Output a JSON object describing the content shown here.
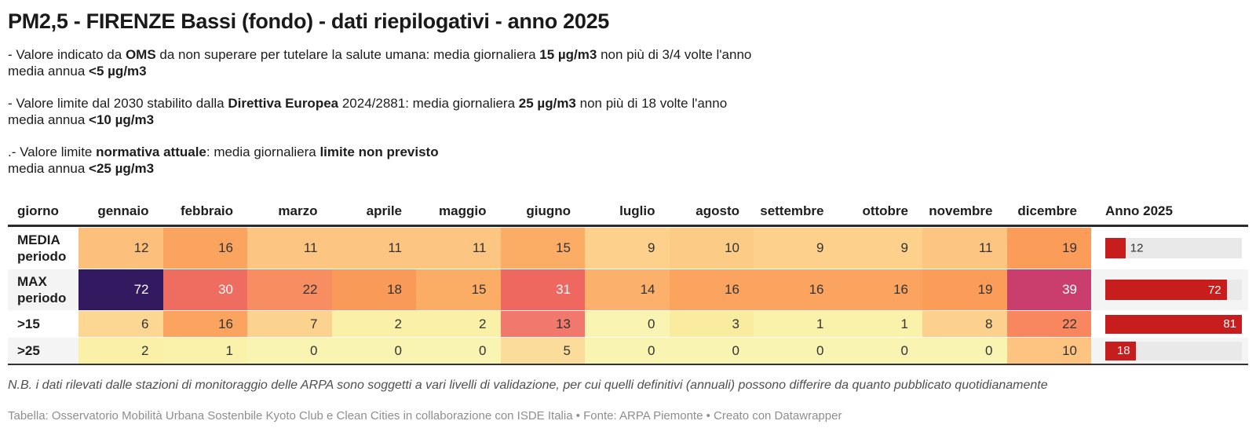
{
  "title": "PM2,5 - FIRENZE Bassi (fondo) - dati riepilogativi - anno 2025",
  "notes": [
    [
      [
        {
          "t": "- Valore indicato da "
        },
        {
          "t": "OMS",
          "b": true
        },
        {
          "t": " da non superare per tutelare la salute umana: media giornaliera "
        },
        {
          "t": "15 µg/m3",
          "b": true
        },
        {
          "t": " non più di 3/4 volte l'anno"
        }
      ],
      [
        {
          "t": "media annua "
        },
        {
          "t": "<5 µg/m3",
          "b": true
        }
      ]
    ],
    [
      [
        {
          "t": "- Valore limite dal 2030 stabilito dalla "
        },
        {
          "t": "Direttiva Europea",
          "b": true
        },
        {
          "t": " 2024/2881: media giornaliera "
        },
        {
          "t": "25 µg/m3",
          "b": true
        },
        {
          "t": " non più di 18 volte l'anno"
        }
      ],
      [
        {
          "t": "media annua "
        },
        {
          "t": "<10 µg/m3",
          "b": true
        }
      ]
    ],
    [
      [
        {
          "t": ".- Valore limite "
        },
        {
          "t": "normativa attuale",
          "b": true
        },
        {
          "t": ": media giornaliera "
        },
        {
          "t": "limite non previsto",
          "b": true
        }
      ],
      [
        {
          "t": "media annua "
        },
        {
          "t": "<25 µg/m3",
          "b": true
        }
      ]
    ]
  ],
  "table": {
    "columns": [
      "giorno",
      "gennaio",
      "febbraio",
      "marzo",
      "aprile",
      "maggio",
      "giugno",
      "luglio",
      "agosto",
      "settembre",
      "ottobre",
      "novembre",
      "dicembre",
      "Anno 2025"
    ],
    "bar_max": 81,
    "bar_color": "#c71e1d",
    "track_color": "#e9e9e9",
    "rows": [
      {
        "label_lines": [
          "MEDIA",
          "periodo"
        ],
        "cells": [
          {
            "v": 12,
            "bg": "#fcc07c"
          },
          {
            "v": 16,
            "bg": "#fba45f"
          },
          {
            "v": 11,
            "bg": "#fcc581"
          },
          {
            "v": 11,
            "bg": "#fcc581"
          },
          {
            "v": 11,
            "bg": "#fcc581"
          },
          {
            "v": 15,
            "bg": "#fbac65"
          },
          {
            "v": 9,
            "bg": "#fdd08c"
          },
          {
            "v": 10,
            "bg": "#fccb86"
          },
          {
            "v": 9,
            "bg": "#fdd08c"
          },
          {
            "v": 9,
            "bg": "#fdd08c"
          },
          {
            "v": 11,
            "bg": "#fcc581"
          },
          {
            "v": 19,
            "bg": "#fb9d59"
          }
        ],
        "bar": {
          "value": 12,
          "inside": false
        }
      },
      {
        "label_lines": [
          "MAX",
          "periodo"
        ],
        "cells": [
          {
            "v": 72,
            "bg": "#331a60",
            "fg": "#ffffff"
          },
          {
            "v": 30,
            "bg": "#ef6c60",
            "fg": "#ffffff"
          },
          {
            "v": 22,
            "bg": "#f78d61"
          },
          {
            "v": 18,
            "bg": "#fa9a59"
          },
          {
            "v": 15,
            "bg": "#fbac65"
          },
          {
            "v": 31,
            "bg": "#ee6860",
            "fg": "#ffffff"
          },
          {
            "v": 14,
            "bg": "#fbb16b"
          },
          {
            "v": 16,
            "bg": "#fba45f"
          },
          {
            "v": 16,
            "bg": "#fba45f"
          },
          {
            "v": 16,
            "bg": "#fba45f"
          },
          {
            "v": 19,
            "bg": "#fb9d59"
          },
          {
            "v": 39,
            "bg": "#c93e6c",
            "fg": "#ffffff"
          }
        ],
        "bar": {
          "value": 72,
          "inside": true
        }
      },
      {
        "label_lines": [
          ">15"
        ],
        "cells": [
          {
            "v": 6,
            "bg": "#fcd794"
          },
          {
            "v": 16,
            "bg": "#fba45f"
          },
          {
            "v": 7,
            "bg": "#fcd28f"
          },
          {
            "v": 2,
            "bg": "#faf0a8"
          },
          {
            "v": 2,
            "bg": "#faf0a8"
          },
          {
            "v": 13,
            "bg": "#f1786c"
          },
          {
            "v": 0,
            "bg": "#faf4b2"
          },
          {
            "v": 3,
            "bg": "#f9ec9f"
          },
          {
            "v": 1,
            "bg": "#faf1ab"
          },
          {
            "v": 1,
            "bg": "#faf1ab"
          },
          {
            "v": 8,
            "bg": "#fcd18d"
          },
          {
            "v": 22,
            "bg": "#f8865e"
          }
        ],
        "bar": {
          "value": 81,
          "inside": true
        }
      },
      {
        "label_lines": [
          ">25"
        ],
        "cells": [
          {
            "v": 2,
            "bg": "#faf0a8"
          },
          {
            "v": 1,
            "bg": "#faf1ab"
          },
          {
            "v": 0,
            "bg": "#faf4b2"
          },
          {
            "v": 0,
            "bg": "#faf4b2"
          },
          {
            "v": 0,
            "bg": "#faf4b2"
          },
          {
            "v": 5,
            "bg": "#fcdc9b"
          },
          {
            "v": 0,
            "bg": "#faf4b2"
          },
          {
            "v": 0,
            "bg": "#faf4b2"
          },
          {
            "v": 0,
            "bg": "#faf4b2"
          },
          {
            "v": 0,
            "bg": "#faf4b2"
          },
          {
            "v": 0,
            "bg": "#faf4b2"
          },
          {
            "v": 10,
            "bg": "#fcc480"
          }
        ],
        "bar": {
          "value": 18,
          "inside": true
        }
      }
    ]
  },
  "footnote": "N.B. i dati rilevati dalle stazioni di monitoraggio delle ARPA sono soggetti a vari livelli di validazione, per cui quelli definitivi (annuali) possono differire da quanto pubblicato quotidianamente",
  "attribution": "Tabella: Osservatorio Mobilità Urbana Sostenbile Kyoto Club e Clean Cities in collaborazione con ISDE Italia • Fonte: ARPA Piemonte • Creato con Datawrapper",
  "chart_data": {
    "type": "heatmap",
    "title": "PM2,5 - FIRENZE Bassi (fondo) - dati riepilogativi - anno 2025",
    "categories": [
      "gennaio",
      "febbraio",
      "marzo",
      "aprile",
      "maggio",
      "giugno",
      "luglio",
      "agosto",
      "settembre",
      "ottobre",
      "novembre",
      "dicembre"
    ],
    "series": [
      {
        "name": "MEDIA periodo",
        "values": [
          12,
          16,
          11,
          11,
          11,
          15,
          9,
          10,
          9,
          9,
          11,
          19
        ],
        "anno_2025": 12
      },
      {
        "name": "MAX periodo",
        "values": [
          72,
          30,
          22,
          18,
          15,
          31,
          14,
          16,
          16,
          16,
          19,
          39
        ],
        "anno_2025": 72
      },
      {
        "name": ">15",
        "values": [
          6,
          16,
          7,
          2,
          2,
          13,
          0,
          3,
          1,
          1,
          8,
          22
        ],
        "anno_2025": 81
      },
      {
        "name": ">25",
        "values": [
          2,
          1,
          0,
          0,
          0,
          5,
          0,
          0,
          0,
          0,
          0,
          10
        ],
        "anno_2025": 18
      }
    ],
    "anno_bar": {
      "label": "Anno 2025",
      "max": 81,
      "color": "#c71e1d"
    },
    "legend_position": "none",
    "grid": false
  }
}
